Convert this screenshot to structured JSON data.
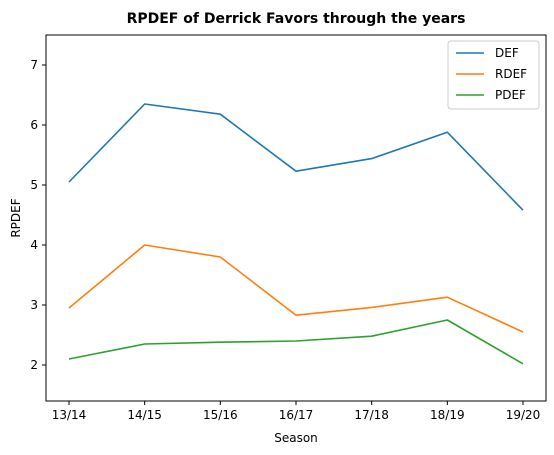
{
  "chart_data": {
    "type": "line",
    "title": "RPDEF of Derrick Favors through the years",
    "xlabel": "Season",
    "ylabel": "RPDEF",
    "categories": [
      "13/14",
      "14/15",
      "15/16",
      "16/17",
      "17/18",
      "18/19",
      "19/20"
    ],
    "yticks": [
      2,
      3,
      4,
      5,
      6,
      7
    ],
    "ylim": [
      1.4,
      7.5
    ],
    "grid": false,
    "legend_position": "top-right",
    "series": [
      {
        "name": "DEF",
        "color": "#1f77b4",
        "values": [
          5.05,
          6.35,
          6.18,
          5.23,
          5.44,
          5.88,
          4.58
        ]
      },
      {
        "name": "RDEF",
        "color": "#ff7f0e",
        "values": [
          2.95,
          4.0,
          3.8,
          2.83,
          2.96,
          3.13,
          2.55
        ]
      },
      {
        "name": "PDEF",
        "color": "#2ca02c",
        "values": [
          2.1,
          2.35,
          2.38,
          2.4,
          2.48,
          2.75,
          2.02
        ]
      }
    ]
  }
}
